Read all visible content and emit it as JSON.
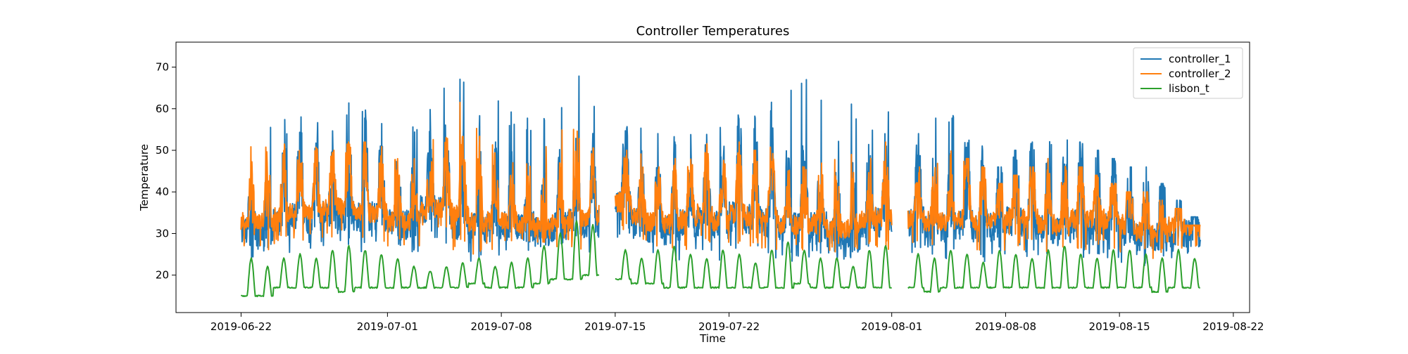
{
  "chart_data": {
    "type": "line",
    "title": "Controller Temperatures",
    "xlabel": "Time",
    "ylabel": "Temperature",
    "xlim": [
      "2019-06-18",
      "2019-08-23"
    ],
    "ylim": [
      11,
      76
    ],
    "x_ticks": [
      "2019-06-22",
      "2019-07-01",
      "2019-07-08",
      "2019-07-15",
      "2019-07-22",
      "2019-08-01",
      "2019-08-08",
      "2019-08-15",
      "2019-08-22"
    ],
    "y_ticks": [
      20,
      30,
      40,
      50,
      60,
      70
    ],
    "grid": false,
    "legend_position": "top-right",
    "date_start": "2019-06-22",
    "date_end": "2019-08-20",
    "gaps": [
      [
        "2019-07-14",
        "2019-07-15"
      ],
      [
        "2019-08-01",
        "2019-08-02"
      ]
    ],
    "series": [
      {
        "name": "controller_1",
        "color": "#1f77b4",
        "base_high": [
          36,
          36,
          44,
          48,
          44,
          44,
          46,
          48,
          44,
          40,
          42,
          46,
          47,
          44,
          44,
          42,
          40,
          36,
          34,
          40,
          42,
          42,
          50,
          48,
          38,
          42,
          42,
          44,
          44,
          46,
          48,
          46,
          46,
          44,
          44,
          40,
          38,
          36,
          42,
          46,
          44,
          44,
          40,
          42,
          46,
          44,
          42,
          44,
          44,
          42,
          40,
          44,
          42,
          44,
          40,
          38,
          38,
          40,
          40
        ],
        "base_low": [
          28,
          27,
          28,
          29,
          29,
          30,
          29,
          28,
          30,
          29,
          28,
          31,
          30,
          27,
          26,
          27,
          28,
          30,
          29,
          28,
          28,
          28,
          28,
          32,
          30,
          27,
          26,
          27,
          28,
          26,
          28,
          28,
          27,
          26,
          26,
          28,
          26,
          26,
          28,
          27,
          26,
          28,
          28,
          27,
          26,
          26,
          27,
          28,
          27,
          26,
          26,
          27,
          28,
          27,
          26,
          25,
          25,
          26,
          26
        ],
        "peak": [
          60,
          58,
          58,
          62,
          62,
          60,
          62,
          60,
          62,
          58,
          60,
          64,
          66,
          72,
          64,
          62,
          60,
          58,
          62,
          66,
          73,
          66,
          60,
          58,
          60,
          54,
          56,
          58,
          64,
          56,
          62,
          60,
          62,
          66,
          67,
          64,
          58,
          62,
          60,
          62,
          60,
          54,
          58,
          60,
          56,
          52,
          46,
          50,
          52,
          54,
          54,
          52,
          50,
          48,
          46,
          46,
          42,
          38,
          34
        ]
      },
      {
        "name": "controller_2",
        "color": "#ff7f0e",
        "base_high": [
          40,
          42,
          44,
          46,
          44,
          46,
          48,
          46,
          44,
          40,
          40,
          42,
          46,
          48,
          44,
          42,
          40,
          36,
          36,
          40,
          44,
          44,
          48,
          48,
          40,
          42,
          42,
          44,
          46,
          44,
          46,
          44,
          46,
          42,
          42,
          40,
          38,
          38,
          42,
          46,
          44,
          42,
          40,
          42,
          46,
          44,
          42,
          44,
          44,
          42,
          40,
          44,
          42,
          44,
          42,
          38,
          38,
          40,
          40
        ],
        "base_low": [
          30,
          29,
          30,
          31,
          31,
          32,
          31,
          30,
          31,
          30,
          30,
          33,
          32,
          29,
          28,
          29,
          30,
          31,
          30,
          29,
          29,
          29,
          30,
          33,
          31,
          29,
          28,
          29,
          30,
          28,
          30,
          30,
          29,
          28,
          28,
          29,
          28,
          28,
          30,
          29,
          28,
          30,
          30,
          29,
          28,
          28,
          29,
          30,
          29,
          28,
          28,
          29,
          30,
          29,
          28,
          27,
          27,
          28,
          28
        ],
        "peak": [
          52,
          54,
          56,
          52,
          52,
          50,
          52,
          52,
          54,
          50,
          52,
          55,
          58,
          65,
          56,
          52,
          50,
          48,
          52,
          56,
          58,
          56,
          52,
          50,
          50,
          46,
          48,
          50,
          52,
          48,
          52,
          50,
          52,
          54,
          56,
          52,
          48,
          50,
          50,
          52,
          50,
          46,
          48,
          50,
          48,
          46,
          42,
          44,
          46,
          48,
          48,
          46,
          44,
          42,
          40,
          40,
          38,
          36,
          32
        ]
      },
      {
        "name": "lisbon_t",
        "color": "#2ca02c",
        "daily_max": [
          24,
          22,
          24,
          25,
          24,
          26,
          27,
          26,
          25,
          24,
          22,
          21,
          22,
          23,
          24,
          22,
          23,
          24,
          27,
          30,
          33,
          32,
          28,
          26,
          24,
          26,
          27,
          25,
          24,
          26,
          25,
          23,
          26,
          28,
          26,
          24,
          24,
          22,
          26,
          27,
          26,
          25,
          24,
          26,
          25,
          23,
          26,
          25,
          24,
          26,
          27,
          25,
          24,
          26,
          26,
          25,
          24,
          26,
          24
        ],
        "daily_min": [
          15,
          15,
          17,
          17,
          17,
          17,
          16,
          17,
          17,
          17,
          17,
          17,
          17,
          17,
          18,
          17,
          17,
          17,
          18,
          19,
          19,
          20,
          20,
          19,
          18,
          18,
          17,
          17,
          17,
          17,
          17,
          17,
          17,
          17,
          18,
          17,
          17,
          17,
          17,
          17,
          17,
          17,
          16,
          17,
          17,
          17,
          17,
          17,
          17,
          17,
          17,
          17,
          17,
          17,
          17,
          17,
          16,
          17,
          17
        ]
      }
    ]
  }
}
